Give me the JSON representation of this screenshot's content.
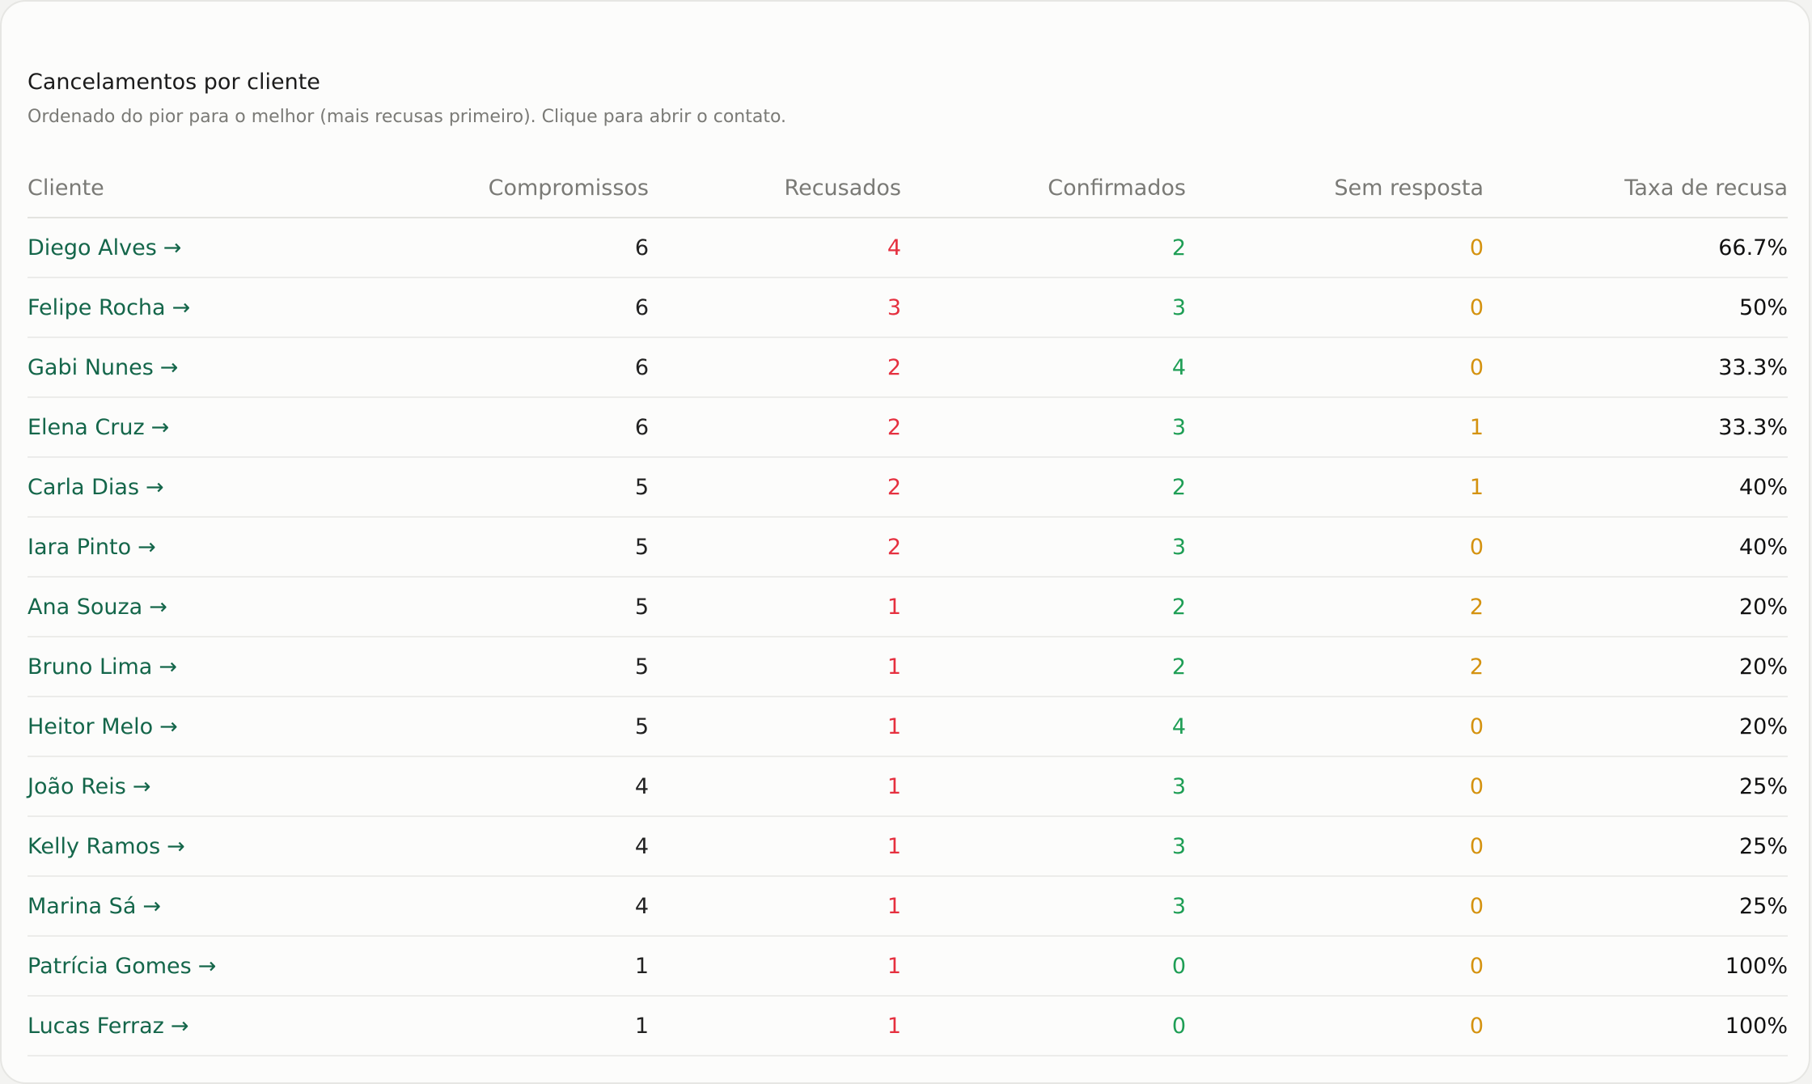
{
  "header": {
    "title": "Cancelamentos por cliente",
    "subtitle": "Ordenado do pior para o melhor (mais recusas primeiro). Clique para abrir o contato."
  },
  "table": {
    "columns": [
      "Cliente",
      "Compromissos",
      "Recusados",
      "Confirmados",
      "Sem resposta",
      "Taxa de recusa"
    ],
    "arrow": "→",
    "colors": {
      "link": "#14664a",
      "recusados": "#e5303f",
      "confirmados": "#1e9e55",
      "sem_resposta": "#d4920f"
    },
    "rows": [
      {
        "cliente": "Diego Alves",
        "compromissos": "6",
        "recusados": "4",
        "confirmados": "2",
        "sem_resposta": "0",
        "taxa": "66.7%"
      },
      {
        "cliente": "Felipe Rocha",
        "compromissos": "6",
        "recusados": "3",
        "confirmados": "3",
        "sem_resposta": "0",
        "taxa": "50%"
      },
      {
        "cliente": "Gabi Nunes",
        "compromissos": "6",
        "recusados": "2",
        "confirmados": "4",
        "sem_resposta": "0",
        "taxa": "33.3%"
      },
      {
        "cliente": "Elena Cruz",
        "compromissos": "6",
        "recusados": "2",
        "confirmados": "3",
        "sem_resposta": "1",
        "taxa": "33.3%"
      },
      {
        "cliente": "Carla Dias",
        "compromissos": "5",
        "recusados": "2",
        "confirmados": "2",
        "sem_resposta": "1",
        "taxa": "40%"
      },
      {
        "cliente": "Iara Pinto",
        "compromissos": "5",
        "recusados": "2",
        "confirmados": "3",
        "sem_resposta": "0",
        "taxa": "40%"
      },
      {
        "cliente": "Ana Souza",
        "compromissos": "5",
        "recusados": "1",
        "confirmados": "2",
        "sem_resposta": "2",
        "taxa": "20%"
      },
      {
        "cliente": "Bruno Lima",
        "compromissos": "5",
        "recusados": "1",
        "confirmados": "2",
        "sem_resposta": "2",
        "taxa": "20%"
      },
      {
        "cliente": "Heitor Melo",
        "compromissos": "5",
        "recusados": "1",
        "confirmados": "4",
        "sem_resposta": "0",
        "taxa": "20%"
      },
      {
        "cliente": "João Reis",
        "compromissos": "4",
        "recusados": "1",
        "confirmados": "3",
        "sem_resposta": "0",
        "taxa": "25%"
      },
      {
        "cliente": "Kelly Ramos",
        "compromissos": "4",
        "recusados": "1",
        "confirmados": "3",
        "sem_resposta": "0",
        "taxa": "25%"
      },
      {
        "cliente": "Marina Sá",
        "compromissos": "4",
        "recusados": "1",
        "confirmados": "3",
        "sem_resposta": "0",
        "taxa": "25%"
      },
      {
        "cliente": "Patrícia Gomes",
        "compromissos": "1",
        "recusados": "1",
        "confirmados": "0",
        "sem_resposta": "0",
        "taxa": "100%"
      },
      {
        "cliente": "Lucas Ferraz",
        "compromissos": "1",
        "recusados": "1",
        "confirmados": "0",
        "sem_resposta": "0",
        "taxa": "100%"
      }
    ]
  }
}
